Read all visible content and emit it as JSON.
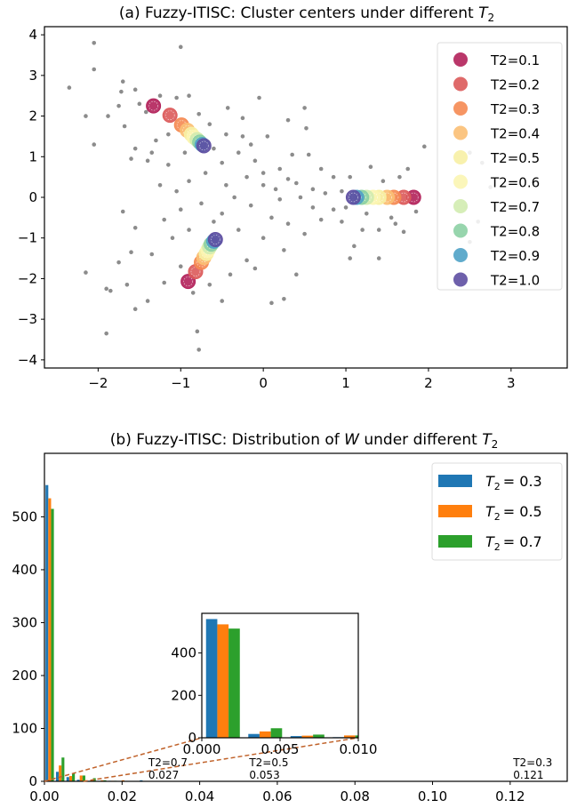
{
  "chart_data": [
    {
      "type": "scatter",
      "title": "(a) Fuzzy-ITISC: Cluster centers under different ",
      "title_math": "T",
      "title_sub": "2",
      "xlim": [
        -2.65,
        3.68
      ],
      "ylim": [
        -4.2,
        4.2
      ],
      "xticks": [
        -2,
        -1,
        0,
        1,
        2,
        3
      ],
      "yticks": [
        -4,
        -3,
        -2,
        -1,
        0,
        1,
        2,
        3,
        4
      ],
      "legend_placement": "top-right",
      "point_color": "#8c8c8c",
      "points": [
        [
          -2.35,
          2.7
        ],
        [
          -2.05,
          3.8
        ],
        [
          -2.05,
          3.15
        ],
        [
          -2.15,
          2.0
        ],
        [
          -1.88,
          2.0
        ],
        [
          -1.75,
          2.25
        ],
        [
          -1.72,
          2.6
        ],
        [
          -1.7,
          2.85
        ],
        [
          -1.55,
          2.65
        ],
        [
          -1.5,
          2.3
        ],
        [
          -1.42,
          2.1
        ],
        [
          -1.25,
          2.5
        ],
        [
          -1.0,
          3.7
        ],
        [
          -1.05,
          2.45
        ],
        [
          -0.9,
          2.5
        ],
        [
          -0.78,
          2.05
        ],
        [
          -0.65,
          1.8
        ],
        [
          -0.43,
          2.2
        ],
        [
          -0.25,
          1.95
        ],
        [
          -0.05,
          2.45
        ],
        [
          0.3,
          1.9
        ],
        [
          0.5,
          2.2
        ],
        [
          0.52,
          1.7
        ],
        [
          -2.05,
          1.3
        ],
        [
          -1.68,
          1.75
        ],
        [
          -1.55,
          1.2
        ],
        [
          -1.3,
          1.4
        ],
        [
          -1.15,
          1.55
        ],
        [
          -1.35,
          1.1
        ],
        [
          -1.6,
          0.95
        ],
        [
          -1.4,
          0.9
        ],
        [
          -1.15,
          0.8
        ],
        [
          -0.95,
          1.1
        ],
        [
          -0.6,
          1.2
        ],
        [
          -0.5,
          0.85
        ],
        [
          -0.3,
          1.1
        ],
        [
          -0.15,
          1.3
        ],
        [
          0.05,
          1.5
        ],
        [
          -0.1,
          0.9
        ],
        [
          0.2,
          0.7
        ],
        [
          0.35,
          1.05
        ],
        [
          0.55,
          1.05
        ],
        [
          0.7,
          0.7
        ],
        [
          0.85,
          0.5
        ],
        [
          -0.9,
          0.4
        ],
        [
          -0.7,
          0.6
        ],
        [
          -0.45,
          0.3
        ],
        [
          -0.2,
          0.5
        ],
        [
          0.0,
          0.3
        ],
        [
          0.15,
          0.2
        ],
        [
          0.4,
          0.35
        ],
        [
          0.6,
          0.2
        ],
        [
          0.75,
          0.1
        ],
        [
          0.95,
          0.15
        ],
        [
          1.05,
          0.5
        ],
        [
          1.3,
          0.75
        ],
        [
          1.45,
          0.4
        ],
        [
          1.65,
          0.5
        ],
        [
          1.75,
          0.7
        ],
        [
          1.95,
          1.25
        ],
        [
          2.5,
          1.1
        ],
        [
          2.65,
          0.85
        ],
        [
          2.75,
          0.25
        ],
        [
          2.45,
          -0.25
        ],
        [
          2.6,
          -0.6
        ],
        [
          2.5,
          -1.1
        ],
        [
          1.7,
          -0.85
        ],
        [
          1.85,
          -0.35
        ],
        [
          1.55,
          -0.5
        ],
        [
          1.4,
          -0.8
        ],
        [
          1.4,
          -1.5
        ],
        [
          1.05,
          -1.5
        ],
        [
          1.1,
          -1.2
        ],
        [
          0.95,
          -0.6
        ],
        [
          -1.7,
          -0.35
        ],
        [
          -1.55,
          -0.75
        ],
        [
          -1.2,
          -0.55
        ],
        [
          -1.1,
          -1.0
        ],
        [
          -1.35,
          -1.4
        ],
        [
          -1.6,
          -1.35
        ],
        [
          -1.75,
          -1.6
        ],
        [
          -1.85,
          -2.3
        ],
        [
          -2.15,
          -1.85
        ],
        [
          -1.9,
          -2.25
        ],
        [
          -1.65,
          -2.15
        ],
        [
          -1.55,
          -2.75
        ],
        [
          -1.4,
          -2.55
        ],
        [
          -1.2,
          -2.1
        ],
        [
          -1.0,
          -1.7
        ],
        [
          -0.85,
          -2.35
        ],
        [
          -0.65,
          -2.15
        ],
        [
          -0.5,
          -2.55
        ],
        [
          -0.8,
          -3.3
        ],
        [
          -0.78,
          -3.75
        ],
        [
          -1.9,
          -3.35
        ],
        [
          -0.4,
          -1.9
        ],
        [
          -0.2,
          -1.55
        ],
        [
          -0.1,
          -1.75
        ],
        [
          0.1,
          -2.6
        ],
        [
          0.25,
          -2.5
        ],
        [
          0.4,
          -1.9
        ],
        [
          0.25,
          -1.3
        ],
        [
          0.0,
          -1.0
        ],
        [
          -0.3,
          -0.8
        ],
        [
          -0.5,
          -0.4
        ],
        [
          -0.15,
          -0.2
        ],
        [
          0.1,
          -0.5
        ],
        [
          0.3,
          -0.65
        ],
        [
          0.5,
          -0.9
        ],
        [
          0.6,
          -0.25
        ],
        [
          0.7,
          -0.55
        ],
        [
          -0.9,
          -0.8
        ],
        [
          -1.0,
          -0.3
        ],
        [
          -0.75,
          -0.15
        ],
        [
          -0.35,
          0.0
        ],
        [
          0.2,
          -0.05
        ],
        [
          0.45,
          0.0
        ],
        [
          0.85,
          -0.3
        ],
        [
          1.0,
          -0.25
        ],
        [
          1.25,
          -0.4
        ],
        [
          1.2,
          -0.8
        ],
        [
          1.6,
          -0.65
        ],
        [
          -1.25,
          0.3
        ],
        [
          -1.05,
          0.15
        ],
        [
          -0.6,
          -0.6
        ],
        [
          0.0,
          0.6
        ],
        [
          0.3,
          0.45
        ],
        [
          -0.45,
          1.55
        ],
        [
          -0.25,
          1.5
        ]
      ],
      "series": [
        {
          "name": "T2=0.1",
          "color": "#b2215a",
          "centers": [
            [
              -1.33,
              2.25
            ],
            [
              -0.91,
              -2.07
            ],
            [
              1.82,
              0
            ]
          ]
        },
        {
          "name": "T2=0.2",
          "color": "#dc5a5a",
          "centers": [
            [
              -1.13,
              2.02
            ],
            [
              -0.82,
              -1.83
            ],
            [
              1.7,
              0
            ]
          ]
        },
        {
          "name": "T2=0.3",
          "color": "#f58a52",
          "centers": [
            [
              -0.99,
              1.78
            ],
            [
              -0.75,
              -1.6
            ],
            [
              1.58,
              0
            ]
          ]
        },
        {
          "name": "T2=0.4",
          "color": "#fbbf74",
          "centers": [
            [
              -0.92,
              1.65
            ],
            [
              -0.72,
              -1.48
            ],
            [
              1.5,
              0
            ]
          ]
        },
        {
          "name": "T2=0.5",
          "color": "#f7f0a4",
          "centers": [
            [
              -0.87,
              1.55
            ],
            [
              -0.69,
              -1.38
            ],
            [
              1.4,
              0
            ]
          ]
        },
        {
          "name": "T2=0.6",
          "color": "#fbf5b2",
          "centers": [
            [
              -0.84,
              1.48
            ],
            [
              -0.67,
              -1.3
            ],
            [
              1.33,
              0
            ]
          ]
        },
        {
          "name": "T2=0.7",
          "color": "#d2ecb0",
          "centers": [
            [
              -0.8,
              1.42
            ],
            [
              -0.65,
              -1.22
            ],
            [
              1.25,
              0
            ]
          ]
        },
        {
          "name": "T2=0.8",
          "color": "#8cd0a4",
          "centers": [
            [
              -0.77,
              1.36
            ],
            [
              -0.63,
              -1.15
            ],
            [
              1.19,
              0
            ]
          ]
        },
        {
          "name": "T2=0.9",
          "color": "#4fa2c7",
          "centers": [
            [
              -0.74,
              1.3
            ],
            [
              -0.6,
              -1.08
            ],
            [
              1.13,
              0
            ]
          ]
        },
        {
          "name": "T2=1.0",
          "color": "#5e4fa2",
          "centers": [
            [
              -0.72,
              1.27
            ],
            [
              -0.58,
              -1.04
            ],
            [
              1.09,
              0
            ]
          ]
        }
      ]
    },
    {
      "type": "bar",
      "title": "(b) Fuzzy-ITISC: Distribution of ",
      "title_w": "W",
      "title_mid": " under different ",
      "title_math": "T",
      "title_sub": "2",
      "xlim": [
        0,
        0.1347
      ],
      "ylim": [
        0,
        620
      ],
      "xticks": [
        "0.00",
        "0.02",
        "0.04",
        "0.06",
        "0.08",
        "0.10",
        "0.12"
      ],
      "yticks": [
        "0",
        "100",
        "200",
        "300",
        "400",
        "500"
      ],
      "bin_width": 0.0027,
      "legend_placement": "top-right",
      "series": [
        {
          "name": "= 0.3",
          "label_math": "T",
          "label_sub": "2",
          "color": "#1f77b4",
          "values": [
            560,
            18,
            8,
            3,
            1,
            1,
            1,
            0,
            0,
            2
          ]
        },
        {
          "name": "= 0.5",
          "label_math": "T",
          "label_sub": "2",
          "color": "#ff7f0e",
          "values": [
            535,
            30,
            10,
            11,
            2,
            2,
            1,
            2,
            0,
            0
          ]
        },
        {
          "name": "= 0.7",
          "label_math": "T",
          "label_sub": "2",
          "color": "#2ca02c",
          "values": [
            515,
            45,
            15,
            11,
            6,
            2,
            1,
            0,
            0,
            0
          ]
        }
      ],
      "inset": {
        "xlim": [
          0,
          0.01
        ],
        "ylim": [
          0,
          587
        ],
        "xticks": [
          "0.000",
          "0.005",
          "0.010"
        ],
        "yticks": [
          "0",
          "200",
          "400"
        ],
        "connector_color": "#c0622a"
      },
      "annotations": [
        {
          "label": "T2=0.7",
          "value": "0.027",
          "x": 0.027
        },
        {
          "label": "T2=0.5",
          "value": "0.053",
          "x": 0.053
        },
        {
          "label": "T2=0.3",
          "value": "0.121",
          "x": 0.121
        }
      ]
    }
  ]
}
